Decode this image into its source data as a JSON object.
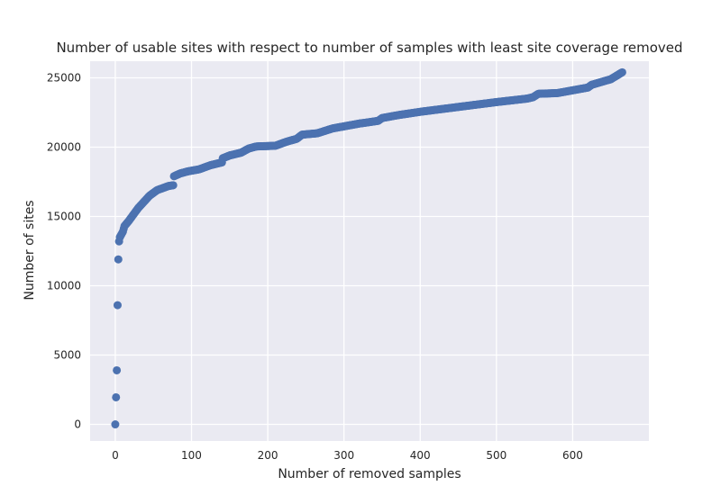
{
  "chart_data": {
    "type": "scatter",
    "title": "Number of usable sites with respect to number of samples with least site coverage removed",
    "xlabel": "Number of removed samples",
    "ylabel": "Number of sites",
    "xlim": [
      -33,
      700
    ],
    "ylim": [
      -1200,
      26200
    ],
    "xticks": [
      0,
      100,
      200,
      300,
      400,
      500,
      600
    ],
    "yticks": [
      0,
      5000,
      10000,
      15000,
      20000,
      25000
    ],
    "grid": true,
    "background_color": "#EAEAF2",
    "grid_color": "#FFFFFF",
    "marker_color": "#4C72B0",
    "key_points": [
      [
        0,
        0
      ],
      [
        2,
        3900
      ],
      [
        3,
        8600
      ],
      [
        4,
        11900
      ],
      [
        5,
        13200
      ],
      [
        6,
        13500
      ],
      [
        8,
        13700
      ],
      [
        10,
        13900
      ],
      [
        12,
        14300
      ],
      [
        15,
        14500
      ],
      [
        18,
        14700
      ],
      [
        22,
        15000
      ],
      [
        26,
        15300
      ],
      [
        30,
        15600
      ],
      [
        35,
        15900
      ],
      [
        40,
        16200
      ],
      [
        45,
        16500
      ],
      [
        50,
        16700
      ],
      [
        55,
        16900
      ],
      [
        60,
        17000
      ],
      [
        65,
        17100
      ],
      [
        70,
        17200
      ],
      [
        76,
        17250
      ],
      [
        77,
        17900
      ],
      [
        85,
        18100
      ],
      [
        95,
        18250
      ],
      [
        110,
        18400
      ],
      [
        125,
        18700
      ],
      [
        140,
        18900
      ],
      [
        141,
        19200
      ],
      [
        150,
        19400
      ],
      [
        165,
        19600
      ],
      [
        175,
        19900
      ],
      [
        185,
        20050
      ],
      [
        210,
        20100
      ],
      [
        225,
        20400
      ],
      [
        238,
        20600
      ],
      [
        245,
        20900
      ],
      [
        265,
        21000
      ],
      [
        285,
        21350
      ],
      [
        300,
        21500
      ],
      [
        320,
        21700
      ],
      [
        345,
        21900
      ],
      [
        350,
        22100
      ],
      [
        370,
        22300
      ],
      [
        400,
        22550
      ],
      [
        450,
        22900
      ],
      [
        500,
        23250
      ],
      [
        540,
        23500
      ],
      [
        548,
        23600
      ],
      [
        555,
        23850
      ],
      [
        580,
        23900
      ],
      [
        600,
        24100
      ],
      [
        620,
        24300
      ],
      [
        625,
        24500
      ],
      [
        650,
        24900
      ],
      [
        665,
        25400
      ]
    ]
  }
}
